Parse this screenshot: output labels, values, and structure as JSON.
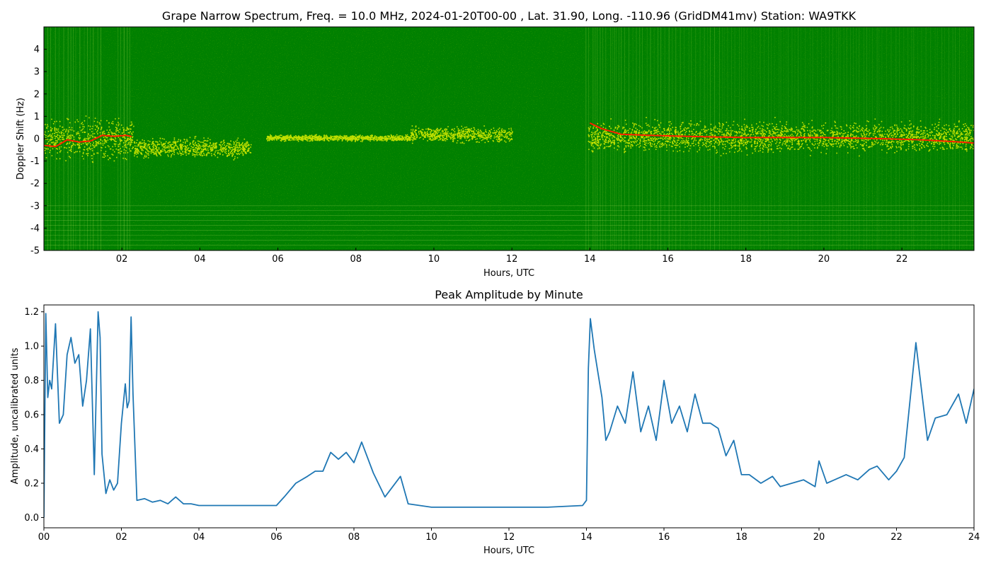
{
  "figure": {
    "spectrum_title": "Grape Narrow Spectrum, Freq. = 10.0 MHz, 2024-01-20T00-00 , Lat.  31.90, Long. -110.96 (GridDM41mv) Station: WA9TKK",
    "amplitude_title": "Peak Amplitude by Minute"
  },
  "chart_data": [
    {
      "type": "heatmap",
      "title": "Grape Narrow Spectrum, Freq. = 10.0 MHz, 2024-01-20T00-00 , Lat.  31.90, Long. -110.96 (GridDM41mv) Station: WA9TKK",
      "xlabel": "Hours, UTC",
      "ylabel": "Doppler Shift (Hz)",
      "x_ticks": [
        "02",
        "04",
        "06",
        "08",
        "10",
        "12",
        "14",
        "16",
        "18",
        "20",
        "22"
      ],
      "x_tick_values": [
        2,
        4,
        6,
        8,
        10,
        12,
        14,
        16,
        18,
        20,
        22
      ],
      "y_ticks": [
        "-5",
        "-4",
        "-3",
        "-2",
        "-1",
        "0",
        "1",
        "2",
        "3",
        "4"
      ],
      "y_tick_values": [
        -5,
        -4,
        -3,
        -2,
        -1,
        0,
        1,
        2,
        3,
        4
      ],
      "xlim": [
        0,
        23.85
      ],
      "ylim": [
        -5,
        5
      ],
      "colors": {
        "background": "#008000",
        "signal": "#ffff00",
        "peak": "#ff2000"
      },
      "peak_doppler_trace": {
        "x": [
          0.0,
          0.3,
          0.6,
          0.9,
          1.2,
          1.5,
          1.8,
          2.1,
          2.25,
          14.0,
          14.3,
          14.8,
          15.5,
          16.5,
          18.0,
          20.0,
          21.5,
          22.5,
          23.5,
          23.85
        ],
        "y": [
          -0.3,
          -0.35,
          -0.05,
          -0.15,
          -0.1,
          0.15,
          0.1,
          0.15,
          0.1,
          0.7,
          0.45,
          0.2,
          0.15,
          0.1,
          0.05,
          0.05,
          0.0,
          -0.05,
          -0.15,
          -0.2
        ]
      },
      "signal_bands": [
        {
          "x": [
            0.0,
            2.3
          ],
          "center": 0.0,
          "spread": 0.8
        },
        {
          "x": [
            2.3,
            5.3
          ],
          "center": -0.4,
          "spread": 0.4
        },
        {
          "x": [
            5.7,
            9.4
          ],
          "center": 0.05,
          "spread": 0.12
        },
        {
          "x": [
            9.4,
            12.0
          ],
          "center": 0.2,
          "spread": 0.3
        },
        {
          "x": [
            13.95,
            23.85
          ],
          "center": 0.1,
          "spread": 0.6
        }
      ]
    },
    {
      "type": "line",
      "title": "Peak Amplitude by Minute",
      "xlabel": "Hours, UTC",
      "ylabel": "Amplitude, uncalibrated units",
      "x_ticks": [
        "00",
        "02",
        "04",
        "06",
        "08",
        "10",
        "12",
        "14",
        "16",
        "18",
        "20",
        "22",
        "24"
      ],
      "x_tick_values": [
        0,
        2,
        4,
        6,
        8,
        10,
        12,
        14,
        16,
        18,
        20,
        22,
        24
      ],
      "y_ticks": [
        "0.0",
        "0.2",
        "0.4",
        "0.6",
        "0.8",
        "1.0",
        "1.2"
      ],
      "y_tick_values": [
        0.0,
        0.2,
        0.4,
        0.6,
        0.8,
        1.0,
        1.2
      ],
      "xlim": [
        0,
        24
      ],
      "ylim": [
        -0.06,
        1.24
      ],
      "color": "#1f77b4",
      "series": [
        {
          "x": [
            0.0,
            0.05,
            0.1,
            0.15,
            0.2,
            0.3,
            0.4,
            0.5,
            0.6,
            0.7,
            0.8,
            0.9,
            1.0,
            1.1,
            1.2,
            1.3,
            1.4,
            1.45,
            1.5,
            1.6,
            1.7,
            1.8,
            1.9,
            2.0,
            2.1,
            2.15,
            2.2,
            2.25,
            2.3,
            2.4,
            2.6,
            2.8,
            3.0,
            3.2,
            3.4,
            3.6,
            3.8,
            4.0,
            4.5,
            5.0,
            5.5,
            6.0,
            6.2,
            6.5,
            6.8,
            7.0,
            7.2,
            7.4,
            7.6,
            7.8,
            8.0,
            8.2,
            8.5,
            8.8,
            9.0,
            9.2,
            9.4,
            10.0,
            11.0,
            12.0,
            13.0,
            13.9,
            14.0,
            14.05,
            14.1,
            14.2,
            14.3,
            14.4,
            14.5,
            14.6,
            14.8,
            15.0,
            15.2,
            15.4,
            15.6,
            15.8,
            16.0,
            16.2,
            16.4,
            16.6,
            16.8,
            17.0,
            17.2,
            17.4,
            17.6,
            17.8,
            18.0,
            18.2,
            18.5,
            18.8,
            19.0,
            19.3,
            19.6,
            19.9,
            20.0,
            20.2,
            20.4,
            20.7,
            21.0,
            21.3,
            21.5,
            21.8,
            22.0,
            22.2,
            22.5,
            22.8,
            23.0,
            23.3,
            23.6,
            23.8,
            24.0
          ],
          "y": [
            0.0,
            1.19,
            0.7,
            0.8,
            0.75,
            1.13,
            0.55,
            0.6,
            0.95,
            1.05,
            0.9,
            0.95,
            0.65,
            0.8,
            1.1,
            0.25,
            1.2,
            1.05,
            0.37,
            0.14,
            0.22,
            0.16,
            0.2,
            0.55,
            0.78,
            0.64,
            0.68,
            1.17,
            0.72,
            0.1,
            0.11,
            0.09,
            0.1,
            0.08,
            0.12,
            0.08,
            0.08,
            0.07,
            0.07,
            0.07,
            0.07,
            0.07,
            0.12,
            0.2,
            0.24,
            0.27,
            0.27,
            0.38,
            0.34,
            0.38,
            0.32,
            0.44,
            0.26,
            0.12,
            0.18,
            0.24,
            0.08,
            0.06,
            0.06,
            0.06,
            0.06,
            0.07,
            0.1,
            0.87,
            1.16,
            0.98,
            0.84,
            0.7,
            0.45,
            0.5,
            0.65,
            0.55,
            0.85,
            0.5,
            0.65,
            0.45,
            0.8,
            0.55,
            0.65,
            0.5,
            0.72,
            0.55,
            0.55,
            0.52,
            0.36,
            0.45,
            0.25,
            0.25,
            0.2,
            0.24,
            0.18,
            0.2,
            0.22,
            0.18,
            0.33,
            0.2,
            0.22,
            0.25,
            0.22,
            0.28,
            0.3,
            0.22,
            0.27,
            0.35,
            1.02,
            0.45,
            0.58,
            0.6,
            0.72,
            0.55,
            0.75
          ]
        }
      ]
    }
  ]
}
